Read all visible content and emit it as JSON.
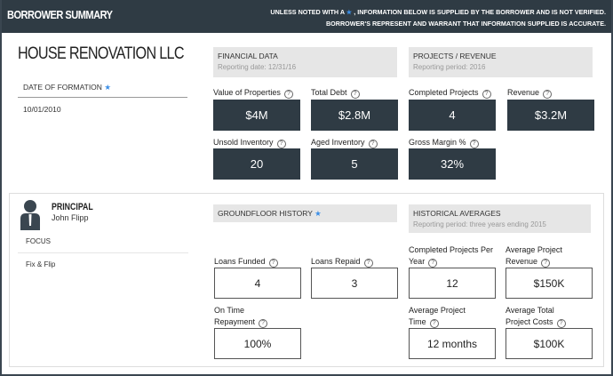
{
  "header": {
    "title": "BORROWER SUMMARY",
    "note_line1_a": "UNLESS NOTED WITH A",
    "note_line1_b": ", INFORMATION BELOW IS SUPPLIED BY THE BORROWER AND IS NOT VERIFIED.",
    "note_line2": "BORROWER'S REPRESENT AND WARRANT THAT INFORMATION SUPPLIED IS ACCURATE."
  },
  "company": {
    "name": "HOUSE RENOVATION LLC",
    "formation_label": "DATE OF FORMATION",
    "formation_date": "10/01/2010"
  },
  "financial": {
    "title": "FINANCIAL DATA",
    "subtitle": "Reporting date: 12/31/16",
    "items": [
      {
        "label": "Value of Properties",
        "value": "$4M"
      },
      {
        "label": "Total Debt",
        "value": "$2.8M"
      },
      {
        "label": "Unsold Inventory",
        "value": "20"
      },
      {
        "label": "Aged Inventory",
        "value": "5"
      }
    ]
  },
  "projects": {
    "title": "PROJECTS / REVENUE",
    "subtitle": "Reporting period: 2016",
    "items": [
      {
        "label": "Completed Projects",
        "value": "4"
      },
      {
        "label": "Revenue",
        "value": "$3.2M"
      },
      {
        "label": "Gross Margin %",
        "value": "32%"
      }
    ]
  },
  "principal": {
    "title": "PRINCIPAL",
    "name": "John Flipp",
    "focus_label": "FOCUS",
    "focus_value": "Fix & Flip"
  },
  "groundfloor": {
    "title": "GROUNDFLOOR HISTORY",
    "items": [
      {
        "label": "Loans Funded",
        "value": "4"
      },
      {
        "label": "Loans Repaid",
        "value": "3"
      },
      {
        "label1": "On Time",
        "label2": "Repayment",
        "value": "100%"
      }
    ]
  },
  "historical": {
    "title": "HISTORICAL AVERAGES",
    "subtitle": "Reporting period: three years ending 2015",
    "items": [
      {
        "label1": "Completed Projects Per",
        "label2": "Year",
        "value": "12"
      },
      {
        "label1": "Average Project",
        "label2": "Revenue",
        "value": "$150K"
      },
      {
        "label1": "Average Project",
        "label2": "Time",
        "value": "12 months"
      },
      {
        "label1": "Average Total",
        "label2": "Project Costs",
        "value": "$100K"
      }
    ]
  },
  "help_glyph": "?",
  "star_glyph": "★"
}
